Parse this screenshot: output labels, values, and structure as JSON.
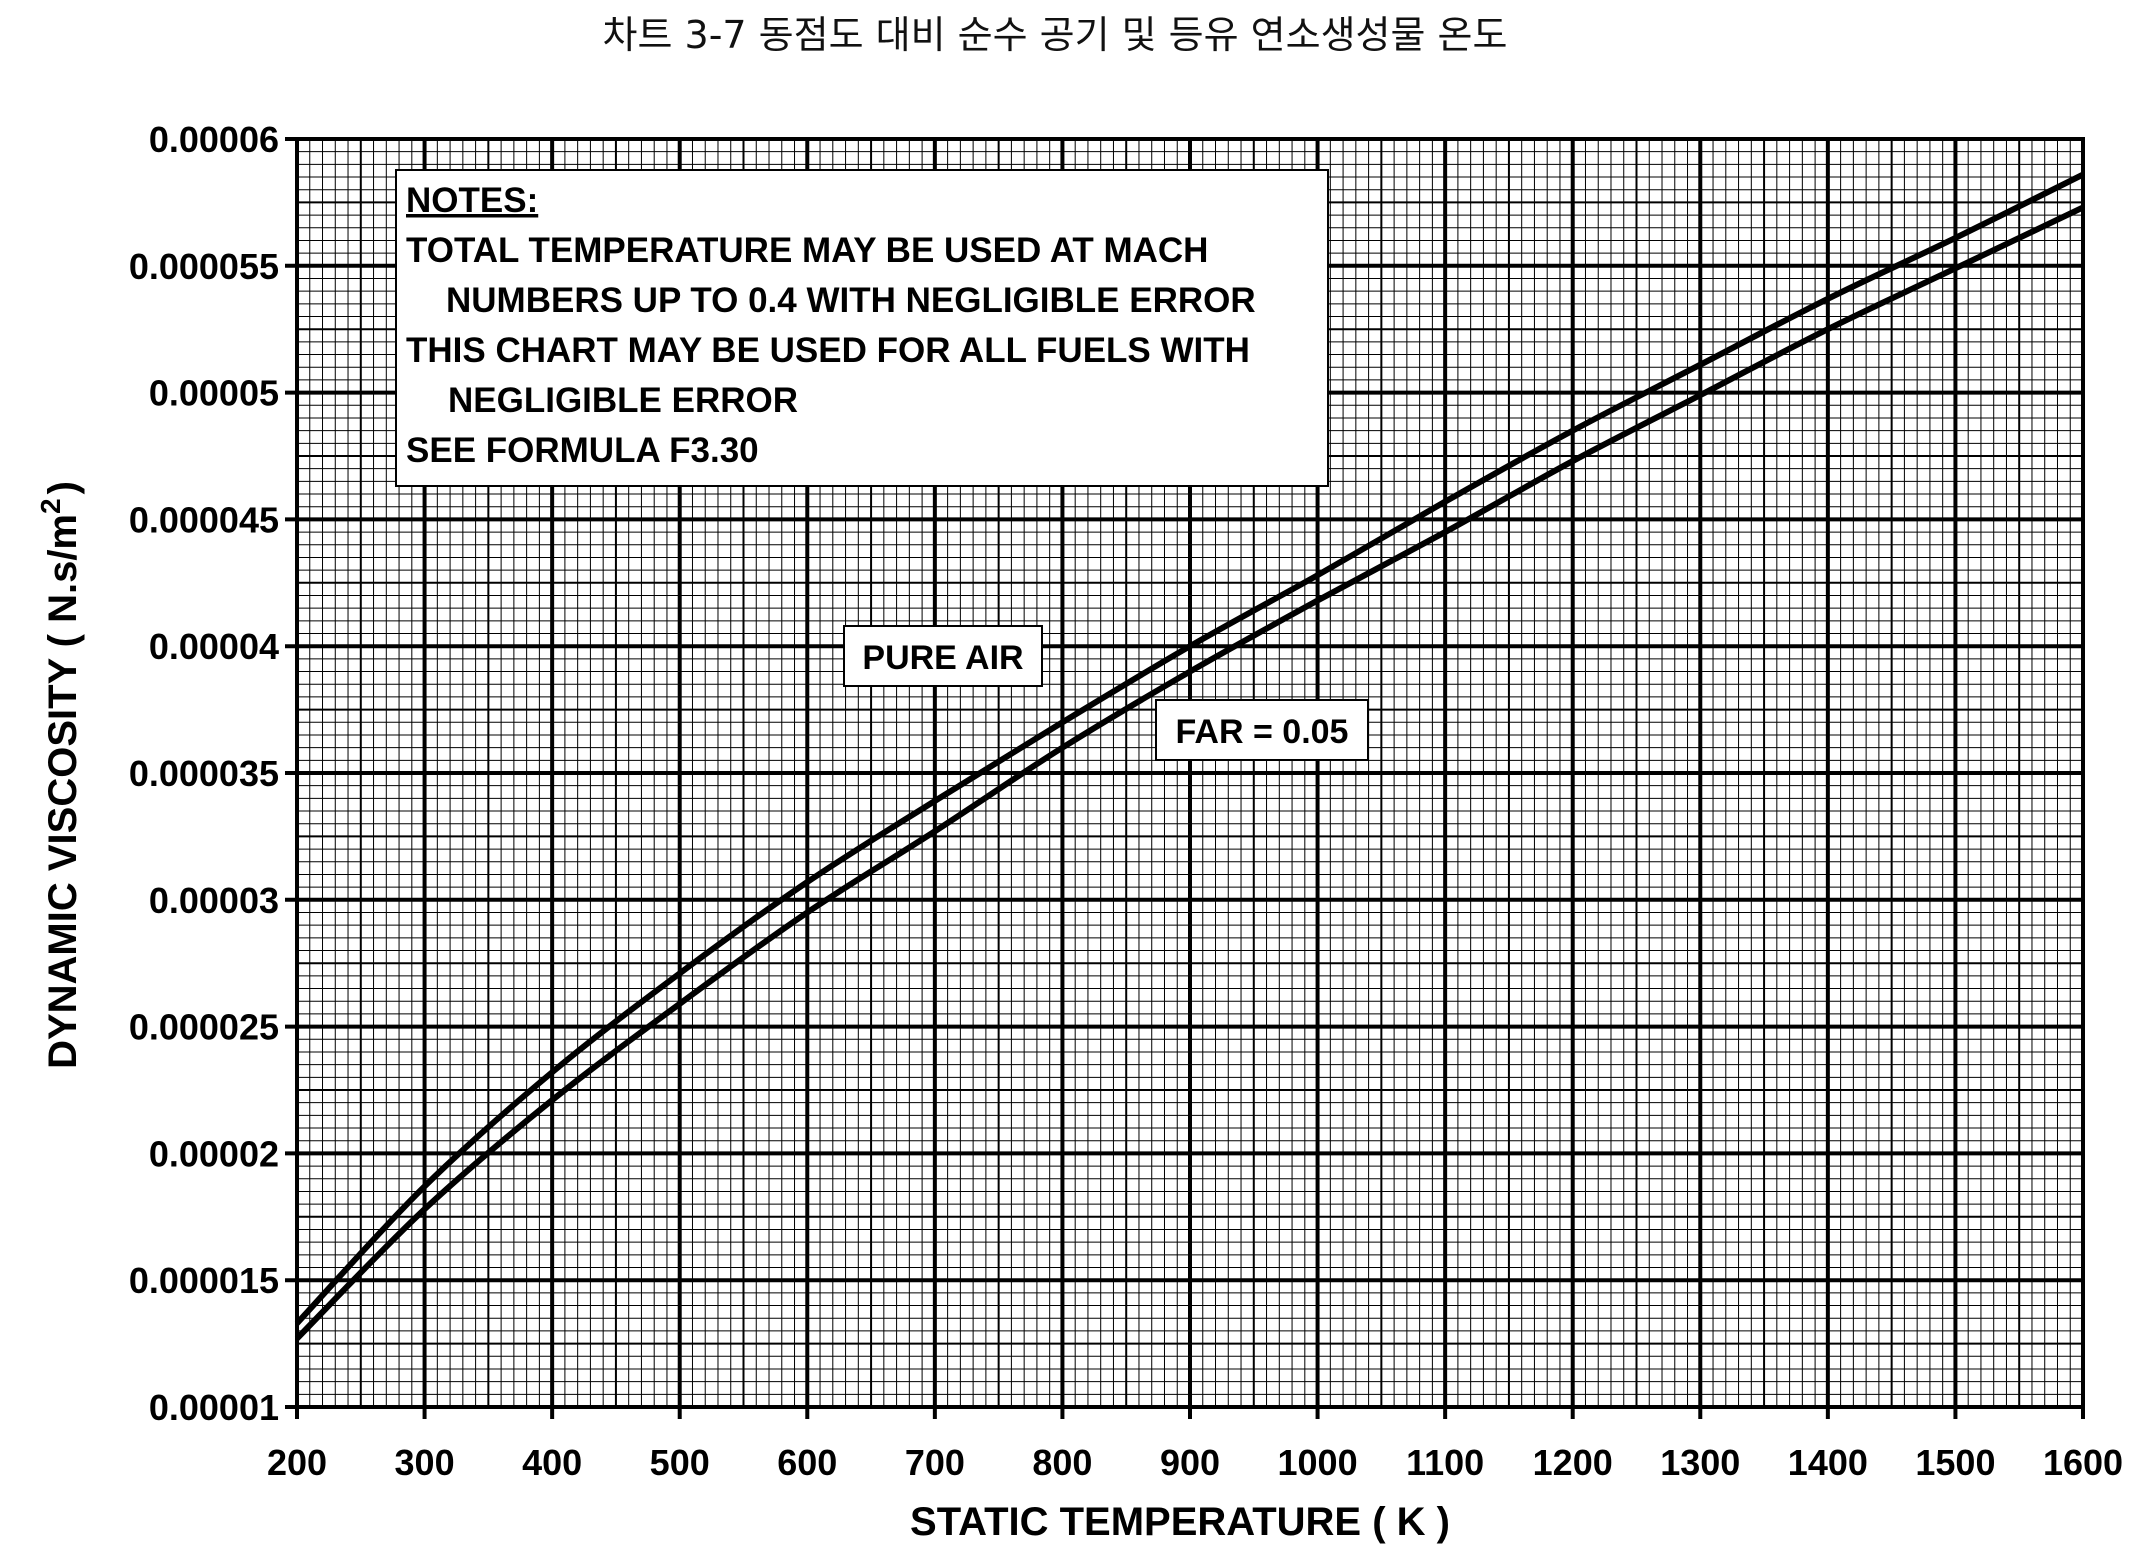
{
  "chart_data": {
    "type": "line",
    "title": "차트 3-7 동점도 대비 순수 공기 및 등유 연소생성물 온도",
    "xlabel": "STATIC TEMPERATURE ( K )",
    "ylabel": "DYNAMIC VISCOSITY ( N.s/m",
    "ylabel_sup": "2",
    "ylabel_end": ")",
    "xlim": [
      200,
      1600
    ],
    "ylim": [
      1e-05,
      6e-05
    ],
    "x_ticks": [
      "200",
      "300",
      "400",
      "500",
      "600",
      "700",
      "800",
      "900",
      "1000",
      "1100",
      "1200",
      "1300",
      "1400",
      "1500",
      "1600"
    ],
    "y_ticks": [
      "0.00001",
      "0.000015",
      "0.00002",
      "0.000025",
      "0.00003",
      "0.000035",
      "0.00004",
      "0.000045",
      "0.00005",
      "0.000055",
      "0.00006"
    ],
    "grid": true,
    "series": [
      {
        "name": "PURE AIR",
        "x": [
          200,
          300,
          400,
          500,
          600,
          700,
          800,
          900,
          1000,
          1100,
          1200,
          1300,
          1400,
          1500,
          1600
        ],
        "y": [
          1.33e-05,
          1.87e-05,
          2.32e-05,
          2.71e-05,
          3.07e-05,
          3.39e-05,
          3.7e-05,
          4e-05,
          4.28e-05,
          4.57e-05,
          4.85e-05,
          5.11e-05,
          5.37e-05,
          5.61e-05,
          5.86e-05
        ]
      },
      {
        "name": "FAR = 0.05",
        "x": [
          200,
          300,
          400,
          500,
          600,
          700,
          800,
          900,
          1000,
          1100,
          1200,
          1300,
          1400,
          1500,
          1600
        ],
        "y": [
          1.27e-05,
          1.78e-05,
          2.21e-05,
          2.59e-05,
          2.95e-05,
          3.27e-05,
          3.6e-05,
          3.9e-05,
          4.18e-05,
          4.45e-05,
          4.73e-05,
          4.99e-05,
          5.25e-05,
          5.49e-05,
          5.73e-05
        ]
      }
    ],
    "notes": {
      "heading": "NOTES:",
      "lines": [
        "TOTAL TEMPERATURE MAY BE USED AT MACH",
        "NUMBERS UP TO 0.4 WITH NEGLIGIBLE ERROR",
        "THIS CHART MAY BE USED FOR ALL FUELS WITH",
        "NEGLIGIBLE ERROR",
        "SEE FORMULA F3.30"
      ]
    },
    "series_labels": [
      "PURE AIR",
      "FAR = 0.05"
    ],
    "line_color": "#000000",
    "background": "#ffffff"
  }
}
